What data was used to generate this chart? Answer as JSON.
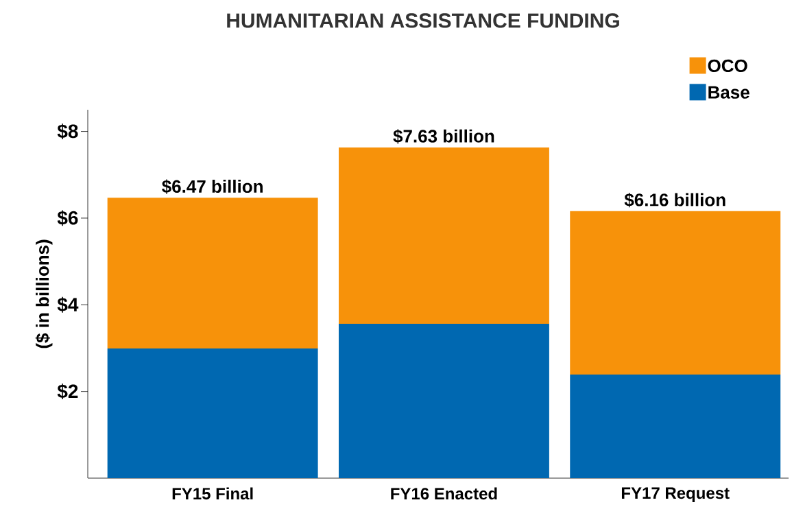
{
  "chart_data": {
    "type": "bar",
    "title": "HUMANITARIAN ASSISTANCE FUNDING",
    "ylabel": "($ in billions)",
    "categories": [
      "FY15 Final",
      "FY16 Enacted",
      "FY17 Request"
    ],
    "stacked": true,
    "series": [
      {
        "name": "Base",
        "color": "#0068b1",
        "values": [
          2.99,
          3.56,
          2.39
        ]
      },
      {
        "name": "OCO",
        "color": "#f7920a",
        "values": [
          3.48,
          4.07,
          3.77
        ]
      }
    ],
    "totals": [
      "$6.47 billion",
      "$7.63 billion",
      "$6.16 billion"
    ],
    "ylim": [
      0,
      8.5
    ],
    "yticks": [
      {
        "value": 2,
        "label": "$2"
      },
      {
        "value": 4,
        "label": "$4"
      },
      {
        "value": 6,
        "label": "$6"
      },
      {
        "value": 8,
        "label": "$8"
      }
    ],
    "grid": false,
    "legend": "top right"
  }
}
